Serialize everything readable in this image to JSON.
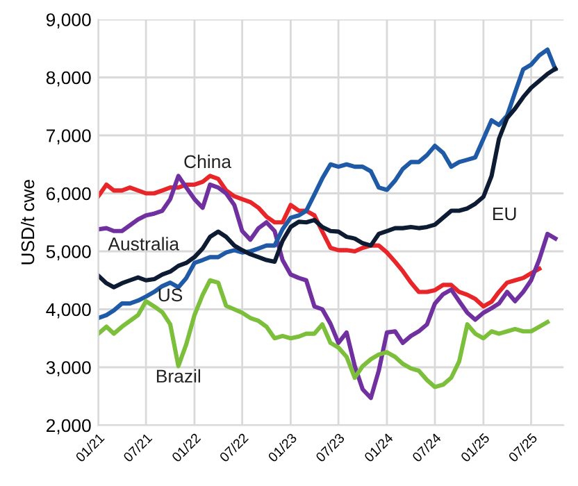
{
  "chart_data": {
    "type": "line",
    "ylabel": "USD/t cwe",
    "x": [
      "2021-01",
      "2021-02",
      "2021-03",
      "2021-04",
      "2021-05",
      "2021-06",
      "2021-07",
      "2021-08",
      "2021-09",
      "2021-10",
      "2021-11",
      "2021-12",
      "2022-01",
      "2022-02",
      "2022-03",
      "2022-04",
      "2022-05",
      "2022-06",
      "2022-07",
      "2022-08",
      "2022-09",
      "2022-10",
      "2022-11",
      "2022-12",
      "2023-01",
      "2023-02",
      "2023-03",
      "2023-04",
      "2023-05",
      "2023-06",
      "2023-07",
      "2023-08",
      "2023-09",
      "2023-10",
      "2023-11",
      "2023-12",
      "2024-01",
      "2024-02",
      "2024-03",
      "2024-04",
      "2024-05",
      "2024-06",
      "2024-07",
      "2024-08",
      "2024-09",
      "2024-10",
      "2024-11",
      "2024-12",
      "2025-01",
      "2025-02",
      "2025-03",
      "2025-04",
      "2025-05",
      "2025-06",
      "2025-07",
      "2025-08",
      "2025-09",
      "2025-10"
    ],
    "series": [
      {
        "name": "China",
        "color": "#e8262a",
        "values": [
          5950,
          6150,
          6050,
          6050,
          6100,
          6050,
          6000,
          6000,
          6050,
          6100,
          6100,
          6150,
          6150,
          6200,
          6300,
          6250,
          6050,
          5950,
          5900,
          5850,
          5750,
          5600,
          5500,
          5500,
          5800,
          5700,
          5700,
          5620,
          5340,
          5060,
          5020,
          5020,
          5000,
          5060,
          5100,
          5100,
          4980,
          4820,
          4660,
          4460,
          4300,
          4300,
          4330,
          4420,
          4420,
          4300,
          4250,
          4180,
          4050,
          4130,
          4300,
          4460,
          4500,
          4540,
          4620,
          4700,
          null,
          null
        ]
      },
      {
        "name": "Australia",
        "color": "#7030a0",
        "values": [
          5380,
          5400,
          5350,
          5350,
          5450,
          5550,
          5620,
          5650,
          5700,
          5900,
          6300,
          6100,
          5900,
          5750,
          6150,
          6100,
          6000,
          5800,
          5350,
          5200,
          5400,
          5500,
          5350,
          4850,
          4600,
          4540,
          4500,
          4050,
          4000,
          3750,
          3420,
          3600,
          3020,
          2620,
          2470,
          2940,
          3600,
          3620,
          3420,
          3540,
          3620,
          3740,
          4100,
          4260,
          4340,
          4140,
          3940,
          3820,
          3940,
          4020,
          4100,
          4300,
          4140,
          4300,
          4500,
          4860,
          5300,
          5220
        ]
      },
      {
        "name": "US",
        "color": "#1f5aa6",
        "values": [
          3850,
          3900,
          3980,
          4100,
          4100,
          4150,
          4220,
          4300,
          4400,
          4460,
          4380,
          4540,
          4800,
          4850,
          4900,
          4900,
          4980,
          5020,
          4980,
          5000,
          5050,
          5100,
          5100,
          5380,
          5580,
          5620,
          5700,
          5980,
          6260,
          6500,
          6460,
          6500,
          6460,
          6460,
          6380,
          6100,
          6060,
          6220,
          6420,
          6540,
          6540,
          6660,
          6820,
          6700,
          6460,
          6540,
          6580,
          6620,
          6940,
          7260,
          7180,
          7340,
          7740,
          8140,
          8220,
          8380,
          8480,
          8140
        ]
      },
      {
        "name": "EU",
        "color": "#0d1b33",
        "values": [
          4580,
          4450,
          4380,
          4450,
          4500,
          4550,
          4500,
          4520,
          4600,
          4650,
          4750,
          4800,
          4900,
          5050,
          5250,
          5340,
          5250,
          5100,
          5020,
          4950,
          4900,
          4850,
          4820,
          5180,
          5420,
          5510,
          5500,
          5540,
          5420,
          5350,
          5340,
          5250,
          5220,
          5140,
          5100,
          5300,
          5350,
          5400,
          5400,
          5420,
          5400,
          5420,
          5460,
          5580,
          5700,
          5700,
          5740,
          5820,
          5940,
          6300,
          6940,
          7300,
          7460,
          7660,
          7820,
          7940,
          8060,
          8150
        ]
      },
      {
        "name": "Brazil",
        "color": "#7cbf3a",
        "values": [
          3580,
          3700,
          3580,
          3700,
          3800,
          3900,
          4140,
          4050,
          3950,
          3740,
          3020,
          3400,
          3900,
          4250,
          4500,
          4460,
          4060,
          4000,
          3940,
          3850,
          3800,
          3700,
          3500,
          3540,
          3500,
          3530,
          3580,
          3580,
          3740,
          3420,
          3340,
          3180,
          2820,
          3020,
          3140,
          3220,
          3260,
          3180,
          3060,
          2980,
          2940,
          2780,
          2660,
          2700,
          2820,
          3100,
          3740,
          3580,
          3500,
          3620,
          3580,
          3620,
          3660,
          3620,
          3620,
          3700,
          3780,
          null
        ]
      }
    ],
    "xlim": [
      "2021-01",
      "2025-11"
    ],
    "xticks": [
      {
        "value": "2021-01",
        "label": "01/21"
      },
      {
        "value": "2021-07",
        "label": "07/21"
      },
      {
        "value": "2022-01",
        "label": "01/22"
      },
      {
        "value": "2022-07",
        "label": "07/22"
      },
      {
        "value": "2023-01",
        "label": "01/23"
      },
      {
        "value": "2023-07",
        "label": "07/23"
      },
      {
        "value": "2024-01",
        "label": "01/24"
      },
      {
        "value": "2024-07",
        "label": "07/24"
      },
      {
        "value": "2025-01",
        "label": "01/25"
      },
      {
        "value": "2025-07",
        "label": "07/25"
      }
    ],
    "ylim": [
      2000,
      9000
    ],
    "yticks": [
      {
        "value": 2000,
        "label": "2,000"
      },
      {
        "value": 3000,
        "label": "3,000"
      },
      {
        "value": 4000,
        "label": "4,000"
      },
      {
        "value": 5000,
        "label": "5,000"
      },
      {
        "value": 6000,
        "label": "6,000"
      },
      {
        "value": 7000,
        "label": "7,000"
      },
      {
        "value": 8000,
        "label": "8,000"
      },
      {
        "value": 9000,
        "label": "9,000"
      }
    ],
    "grid": true,
    "legend": false,
    "marker": "none",
    "line_style": "solid"
  }
}
